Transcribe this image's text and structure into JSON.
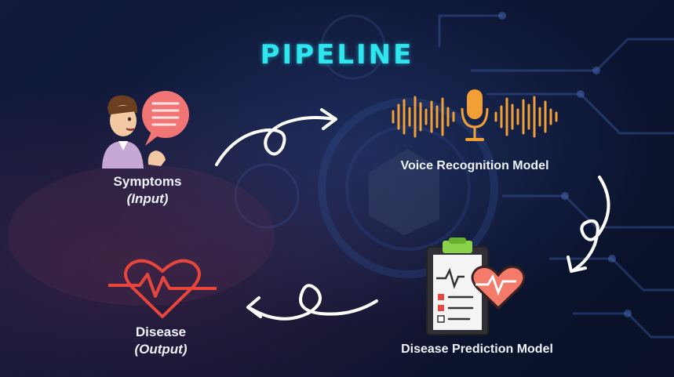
{
  "title": "PIPELINE",
  "nodes": {
    "symptoms": {
      "label": "Symptoms",
      "sub": "(Input)"
    },
    "voice": {
      "label": "Voice Recognition Model"
    },
    "disease": {
      "label": "Disease",
      "sub": "(Output)"
    },
    "prediction": {
      "label": "Disease Prediction Model"
    }
  },
  "colors": {
    "title": "#2ee6f0",
    "waveform": "#f2a036",
    "heart_line": "#e8453c",
    "arrow": "#ffffff",
    "label": "#eef2fb"
  },
  "icons": {
    "symptoms": "person-speaking-icon",
    "voice": "microphone-waveform-icon",
    "disease": "heartbeat-icon",
    "prediction": "clipboard-heart-icon"
  }
}
